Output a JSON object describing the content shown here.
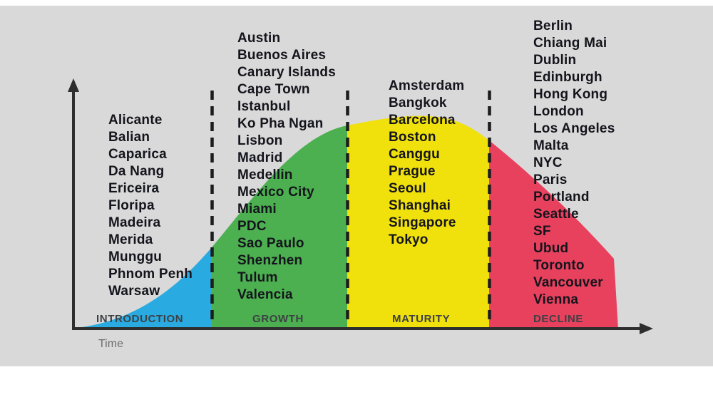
{
  "diagram": {
    "time_label": "Time",
    "phases": [
      {
        "id": "introduction",
        "label": "INTRODUCTION",
        "color": "#29ABE2",
        "cities": [
          "Alicante",
          "Balian",
          "Caparica",
          "Da Nang",
          "Ericeira",
          "Floripa",
          "Madeira",
          "Merida",
          "Munggu",
          "Phnom Penh",
          "Warsaw"
        ]
      },
      {
        "id": "growth",
        "label": "GROWTH",
        "color": "#4CB050",
        "cities": [
          "Austin",
          "Buenos Aires",
          "Canary Islands",
          "Cape Town",
          "Istanbul",
          "Ko Pha Ngan",
          "Lisbon",
          "Madrid",
          "Medellin",
          "Mexico City",
          "Miami",
          "PDC",
          "Sao Paulo",
          "Shenzhen",
          "Tulum",
          "Valencia"
        ]
      },
      {
        "id": "maturity",
        "label": "MATURITY",
        "color": "#F0E10D",
        "cities": [
          "Amsterdam",
          "Bangkok",
          "Barcelona",
          "Boston",
          "Canggu",
          "Prague",
          "Seoul",
          "Shanghai",
          "Singapore",
          "Tokyo"
        ]
      },
      {
        "id": "decline",
        "label": "DECLINE",
        "color": "#E8415E",
        "cities": [
          "Berlin",
          "Chiang Mai",
          "Dublin",
          "Edinburgh",
          "Hong Kong",
          "London",
          "Los Angeles",
          "Malta",
          "NYC",
          "Paris",
          "Portland",
          "Seattle",
          "SF",
          "Ubud",
          "Toronto",
          "Vancouver",
          "Vienna"
        ]
      }
    ]
  }
}
